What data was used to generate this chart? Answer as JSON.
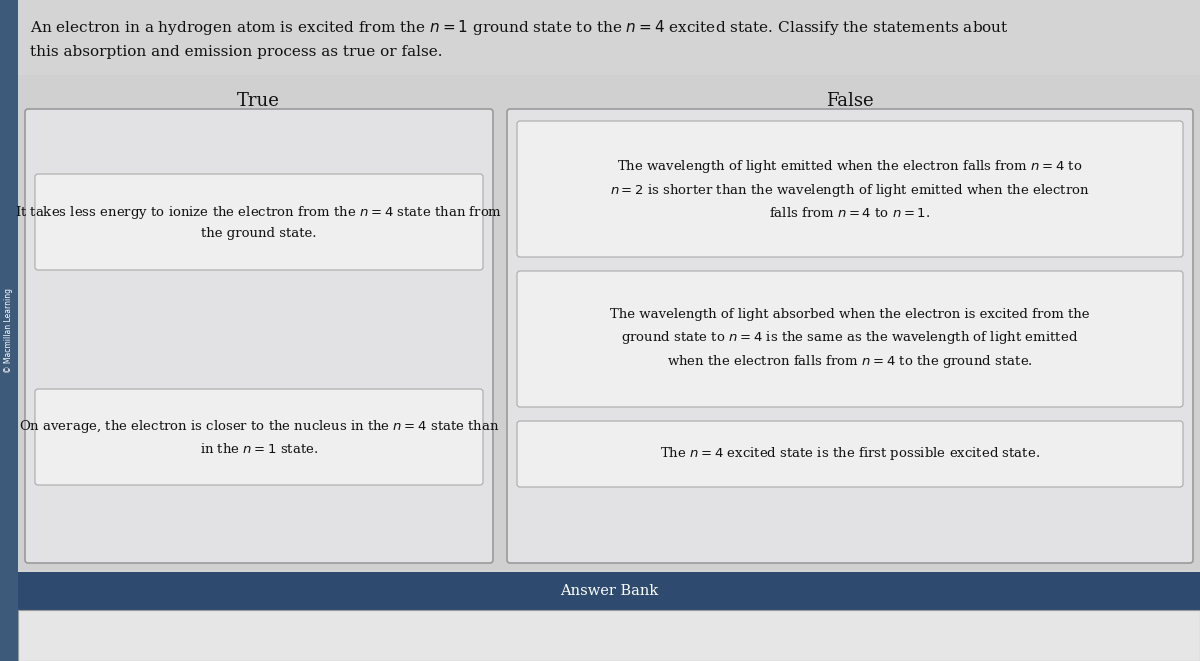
{
  "outer_bg": "#d4d4d4",
  "title_bg": "#d4d4d4",
  "content_bg": "#d0d0d0",
  "sidebar_color": "#3d5a7a",
  "sidebar_text": "© Macmillan Learning",
  "true_label": "True",
  "false_label": "False",
  "true_item1": "It takes less energy to ionize the electron from the $n = 4$ state than from\nthe ground state.",
  "true_item2": "On average, the electron is closer to the nucleus in the $n = 4$ state than\nin the $n = 1$ state.",
  "false_item1_line1": "The wavelength of light emitted when the electron falls from $n = 4$ to",
  "false_item1_line2": "$n = 2$ is shorter than the wavelength of light emitted when the electron",
  "false_item1_line3": "falls from $n = 4$ to $n = 1$.",
  "false_item2_line1": "The wavelength of light absorbed when the electron is excited from the",
  "false_item2_line2": "ground state to $n = 4$ is the same as the wavelength of light emitted",
  "false_item2_line3": "when the electron falls from $n = 4$ to the ground state.",
  "false_item3": "The $n = 4$ excited state is the first possible excited state.",
  "answer_bank_label": "Answer Bank",
  "answer_bank_header_color": "#2e4a6e",
  "card_bg": "#f0eff0",
  "card_border": "#aaaaaa",
  "outer_box_bg": "#e2e2e4",
  "outer_box_border": "#9a9a9c",
  "title_line1": "An electron in a hydrogen atom is excited from the $n = 1$ ground state to the $n = 4$ excited state. Classify the statements about",
  "title_line2": "this absorption and emission process as true or false."
}
